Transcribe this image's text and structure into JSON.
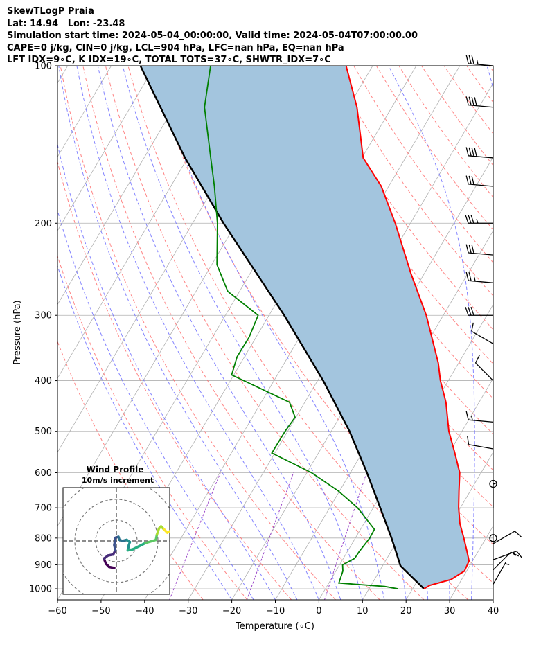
{
  "header": {
    "title_line": "SkewTLogP Praia",
    "location_line": "Lat: 14.94   Lon: -23.48",
    "time_line": "Simulation start time: 2024-05-04_00:00:00, Valid time: 2024-05-04T07:00:00.00",
    "indices_line": "CAPE=0 j/kg, CIN=0 j/kg, LCL=904 hPa, LFC=nan hPa, EQ=nan hPa",
    "indices_line2": "LFT IDX=9∘C, K IDX=19∘C, TOTAL TOTS=37∘C, SHWTR_IDX=7∘C"
  },
  "colors": {
    "temperature": "#ff0000",
    "dewpoint": "#008000",
    "parcel": "#000000",
    "cape_fill": "#a3c5de",
    "dry_adiabat": "#ff6f6f",
    "moist_adiabat": "#6f6fff",
    "mixing_ratio": "#9b48c9",
    "isotherm": "#b0b0b0"
  },
  "chart_data": {
    "type": "skewt",
    "xlabel": "Temperature (∘C)",
    "ylabel": "Pressure (hPa)",
    "xlim": [
      -60,
      40
    ],
    "ylim": [
      1050,
      100
    ],
    "x_ticks": [
      -60,
      -50,
      -40,
      -30,
      -20,
      -10,
      0,
      10,
      20,
      30,
      40
    ],
    "y_ticks": [
      1000,
      900,
      800,
      700,
      600,
      500,
      400,
      300,
      200,
      100
    ],
    "temperature": [
      {
        "p": 1000,
        "t": 22.6
      },
      {
        "p": 985,
        "t": 23.5
      },
      {
        "p": 960,
        "t": 27.6
      },
      {
        "p": 925,
        "t": 29.5
      },
      {
        "p": 885,
        "t": 29.2
      },
      {
        "p": 850,
        "t": 27.5
      },
      {
        "p": 800,
        "t": 24.9
      },
      {
        "p": 750,
        "t": 22.0
      },
      {
        "p": 700,
        "t": 19.6
      },
      {
        "p": 650,
        "t": 17.4
      },
      {
        "p": 600,
        "t": 15.1
      },
      {
        "p": 550,
        "t": 11.3
      },
      {
        "p": 500,
        "t": 7.0
      },
      {
        "p": 440,
        "t": 2.4
      },
      {
        "p": 400,
        "t": -1.8
      },
      {
        "p": 370,
        "t": -4.7
      },
      {
        "p": 300,
        "t": -13.9
      },
      {
        "p": 250,
        "t": -23.0
      },
      {
        "p": 200,
        "t": -33.5
      },
      {
        "p": 170,
        "t": -41.7
      },
      {
        "p": 150,
        "t": -49.7
      },
      {
        "p": 120,
        "t": -58.0
      },
      {
        "p": 100,
        "t": -66.1
      }
    ],
    "dewpoint": [
      {
        "p": 1000,
        "t": 16.6
      },
      {
        "p": 990,
        "t": 13.3
      },
      {
        "p": 975,
        "t": 2.3
      },
      {
        "p": 925,
        "t": 1.6
      },
      {
        "p": 900,
        "t": 0.7
      },
      {
        "p": 875,
        "t": 2.6
      },
      {
        "p": 850,
        "t": 2.7
      },
      {
        "p": 800,
        "t": 3.3
      },
      {
        "p": 770,
        "t": 3.2
      },
      {
        "p": 700,
        "t": -3.6
      },
      {
        "p": 650,
        "t": -10.3
      },
      {
        "p": 600,
        "t": -18.9
      },
      {
        "p": 550,
        "t": -30.7
      },
      {
        "p": 500,
        "t": -30.6
      },
      {
        "p": 470,
        "t": -30.2
      },
      {
        "p": 440,
        "t": -33.5
      },
      {
        "p": 390,
        "t": -50.5
      },
      {
        "p": 360,
        "t": -51.7
      },
      {
        "p": 330,
        "t": -51.6
      },
      {
        "p": 300,
        "t": -52.5
      },
      {
        "p": 270,
        "t": -62.7
      },
      {
        "p": 240,
        "t": -68.8
      },
      {
        "p": 200,
        "t": -74.3
      },
      {
        "p": 170,
        "t": -80.0
      },
      {
        "p": 150,
        "t": -84.7
      },
      {
        "p": 120,
        "t": -93.0
      },
      {
        "p": 100,
        "t": -97.2
      }
    ],
    "parcel": [
      {
        "p": 1000,
        "t": 22.6
      },
      {
        "p": 904,
        "t": 14.1
      },
      {
        "p": 850,
        "t": 11.2
      },
      {
        "p": 800,
        "t": 8.3
      },
      {
        "p": 700,
        "t": 1.6
      },
      {
        "p": 600,
        "t": -6.2
      },
      {
        "p": 500,
        "t": -15.8
      },
      {
        "p": 400,
        "t": -28.7
      },
      {
        "p": 300,
        "t": -46.5
      },
      {
        "p": 200,
        "t": -72.9
      },
      {
        "p": 150,
        "t": -90.6
      },
      {
        "p": 100,
        "t": -113.3
      }
    ],
    "wind_barbs": [
      {
        "p": 100,
        "speed_kt": 35,
        "dir_deg": 275
      },
      {
        "p": 120,
        "speed_kt": 40,
        "dir_deg": 275
      },
      {
        "p": 150,
        "speed_kt": 40,
        "dir_deg": 275
      },
      {
        "p": 170,
        "speed_kt": 30,
        "dir_deg": 275
      },
      {
        "p": 200,
        "speed_kt": 35,
        "dir_deg": 270
      },
      {
        "p": 230,
        "speed_kt": 30,
        "dir_deg": 275
      },
      {
        "p": 260,
        "speed_kt": 25,
        "dir_deg": 275
      },
      {
        "p": 300,
        "speed_kt": 30,
        "dir_deg": 270
      },
      {
        "p": 340,
        "speed_kt": 10,
        "dir_deg": 300
      },
      {
        "p": 400,
        "speed_kt": 10,
        "dir_deg": 315
      },
      {
        "p": 480,
        "speed_kt": 15,
        "dir_deg": 275
      },
      {
        "p": 540,
        "speed_kt": 10,
        "dir_deg": 280
      },
      {
        "p": 630,
        "speed_kt": 0,
        "dir_deg": 0
      },
      {
        "p": 700,
        "speed_kt": 5,
        "dir_deg": 360
      },
      {
        "p": 800,
        "speed_kt": 0,
        "dir_deg": 0
      },
      {
        "p": 820,
        "speed_kt": 10,
        "dir_deg": 60
      },
      {
        "p": 880,
        "speed_kt": 15,
        "dir_deg": 70
      },
      {
        "p": 920,
        "speed_kt": 10,
        "dir_deg": 45
      },
      {
        "p": 980,
        "speed_kt": 5,
        "dir_deg": 30
      }
    ],
    "hodograph": {
      "title": "Wind Profile",
      "subtitle": "10m/s increment",
      "ring_step_ms": 10,
      "rings": 3,
      "points": [
        {
          "u": -1.0,
          "v": -13.0
        },
        {
          "u": -3.5,
          "v": -12.5
        },
        {
          "u": -5.0,
          "v": -11.0
        },
        {
          "u": -6.0,
          "v": -8.5
        },
        {
          "u": -4.0,
          "v": -7.0
        },
        {
          "u": -1.5,
          "v": -6.5
        },
        {
          "u": -0.5,
          "v": -4.5
        },
        {
          "u": -1.0,
          "v": -2.0
        },
        {
          "u": -0.5,
          "v": 1.5
        },
        {
          "u": 1.0,
          "v": 2.0
        },
        {
          "u": 1.5,
          "v": 0.5
        },
        {
          "u": 3.0,
          "v": 0.0
        },
        {
          "u": 5.0,
          "v": 0.5
        },
        {
          "u": 6.5,
          "v": -0.5
        },
        {
          "u": 6.0,
          "v": -2.0
        },
        {
          "u": 5.5,
          "v": -4.5
        },
        {
          "u": 8.0,
          "v": -4.0
        },
        {
          "u": 11.0,
          "v": -2.5
        },
        {
          "u": 14.0,
          "v": -1.0
        },
        {
          "u": 17.5,
          "v": 0.0
        },
        {
          "u": 19.0,
          "v": 0.5
        },
        {
          "u": 19.5,
          "v": 3.0
        },
        {
          "u": 20.5,
          "v": 6.0
        },
        {
          "u": 21.5,
          "v": 7.0
        },
        {
          "u": 23.0,
          "v": 5.5
        },
        {
          "u": 24.5,
          "v": 4.0
        },
        {
          "u": 26.5,
          "v": 5.0
        }
      ]
    }
  }
}
